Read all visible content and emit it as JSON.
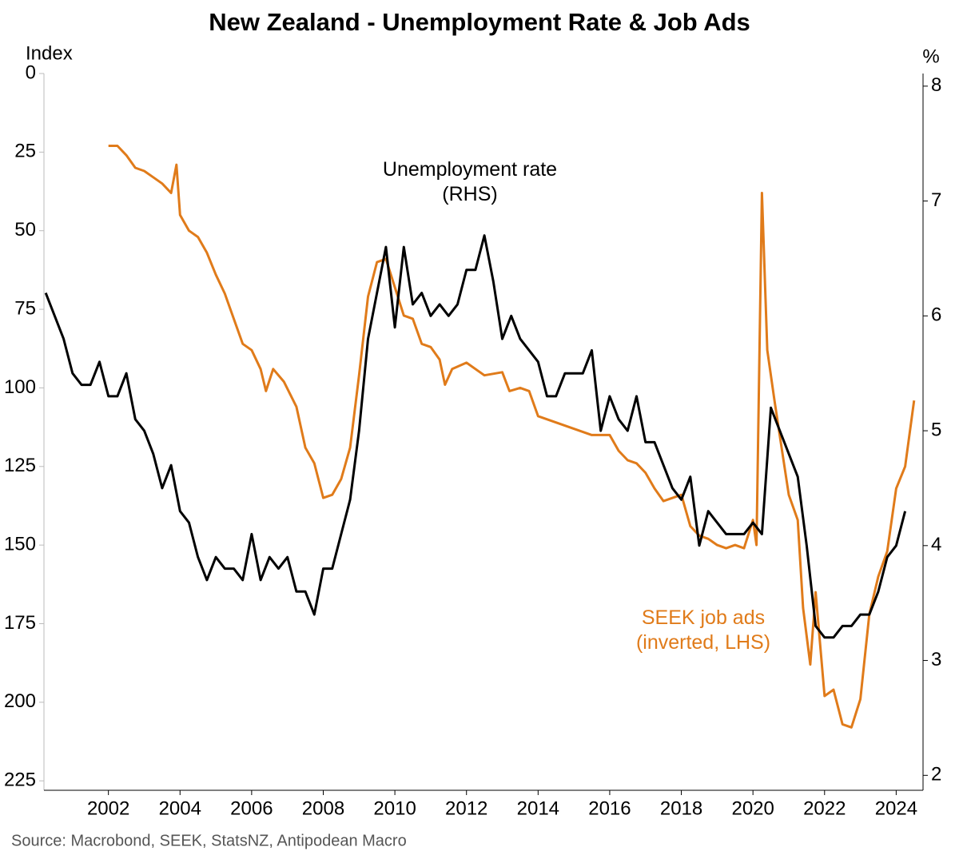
{
  "chart_data": {
    "type": "line",
    "title": "New Zealand - Unemployment Rate & Job Ads",
    "ylabel": "Index",
    "y2label": "%",
    "source": "Source: Macrobond, SEEK, StatsNZ, Antipodean Macro",
    "xlim": [
      2000.2,
      2024.75
    ],
    "xticks": [
      2002,
      2004,
      2006,
      2008,
      2010,
      2012,
      2014,
      2016,
      2018,
      2020,
      2022,
      2024
    ],
    "ylim": [
      0,
      228
    ],
    "y_inverted": true,
    "yticks": [
      0,
      25,
      50,
      75,
      100,
      125,
      150,
      175,
      200,
      225
    ],
    "y2lim": [
      1.87,
      8.11
    ],
    "y2ticks": [
      2,
      3,
      4,
      5,
      6,
      7,
      8
    ],
    "series": [
      {
        "name": "SEEK job ads",
        "color": "#e07b1a",
        "axis": "y",
        "x": [
          2002.0,
          2002.25,
          2002.5,
          2002.75,
          2003.0,
          2003.25,
          2003.5,
          2003.75,
          2003.9,
          2004.0,
          2004.25,
          2004.5,
          2004.75,
          2005.0,
          2005.25,
          2005.5,
          2005.75,
          2006.0,
          2006.25,
          2006.4,
          2006.6,
          2006.9,
          2007.25,
          2007.5,
          2007.75,
          2008.0,
          2008.25,
          2008.5,
          2008.75,
          2009.0,
          2009.25,
          2009.5,
          2009.75,
          2010.0,
          2010.25,
          2010.5,
          2010.75,
          2011.0,
          2011.25,
          2011.4,
          2011.6,
          2012.0,
          2012.5,
          2013.0,
          2013.2,
          2013.5,
          2013.75,
          2014.0,
          2014.5,
          2015.0,
          2015.5,
          2016.0,
          2016.25,
          2016.5,
          2016.75,
          2017.0,
          2017.25,
          2017.5,
          2018.0,
          2018.25,
          2018.5,
          2018.75,
          2019.0,
          2019.25,
          2019.5,
          2019.75,
          2020.0,
          2020.1,
          2020.25,
          2020.4,
          2020.6,
          2020.8,
          2021.0,
          2021.25,
          2021.4,
          2021.6,
          2021.75,
          2022.0,
          2022.25,
          2022.5,
          2022.75,
          2023.0,
          2023.25,
          2023.5,
          2023.75,
          2024.0,
          2024.25,
          2024.5
        ],
        "values": [
          23,
          23,
          26,
          30,
          31,
          33,
          35,
          38,
          29,
          45,
          50,
          52,
          57,
          64,
          70,
          78,
          86,
          88,
          94,
          101,
          94,
          98,
          106,
          119,
          124,
          135,
          134,
          129,
          119,
          96,
          71,
          60,
          59,
          68,
          77,
          78,
          86,
          87,
          91,
          99,
          94,
          92,
          96,
          95,
          101,
          100,
          101,
          109,
          111,
          113,
          115,
          115,
          120,
          123,
          124,
          127,
          132,
          136,
          134,
          144,
          147,
          148,
          150,
          151,
          150,
          151,
          142,
          150,
          38,
          88,
          104,
          119,
          134,
          142,
          170,
          188,
          165,
          198,
          196,
          207,
          208,
          199,
          172,
          160,
          152,
          132,
          125,
          104
        ]
      },
      {
        "name": "Unemployment rate",
        "color": "#000000",
        "axis": "y2",
        "x": [
          2000.25,
          2000.5,
          2000.75,
          2001.0,
          2001.25,
          2001.5,
          2001.75,
          2002.0,
          2002.25,
          2002.5,
          2002.75,
          2003.0,
          2003.25,
          2003.5,
          2003.75,
          2004.0,
          2004.25,
          2004.5,
          2004.75,
          2005.0,
          2005.25,
          2005.5,
          2005.75,
          2006.0,
          2006.25,
          2006.5,
          2006.75,
          2007.0,
          2007.25,
          2007.5,
          2007.75,
          2008.0,
          2008.25,
          2008.5,
          2008.75,
          2009.0,
          2009.25,
          2009.5,
          2009.75,
          2010.0,
          2010.25,
          2010.5,
          2010.75,
          2011.0,
          2011.25,
          2011.5,
          2011.75,
          2012.0,
          2012.25,
          2012.5,
          2012.75,
          2013.0,
          2013.25,
          2013.5,
          2013.75,
          2014.0,
          2014.25,
          2014.5,
          2014.75,
          2015.0,
          2015.25,
          2015.5,
          2015.75,
          2016.0,
          2016.25,
          2016.5,
          2016.75,
          2017.0,
          2017.25,
          2017.5,
          2017.75,
          2018.0,
          2018.25,
          2018.5,
          2018.75,
          2019.0,
          2019.25,
          2019.5,
          2019.75,
          2020.0,
          2020.25,
          2020.5,
          2020.75,
          2021.0,
          2021.25,
          2021.5,
          2021.75,
          2022.0,
          2022.25,
          2022.5,
          2022.75,
          2023.0,
          2023.25,
          2023.5,
          2023.75,
          2024.0,
          2024.25
        ],
        "values": [
          6.2,
          6.0,
          5.8,
          5.5,
          5.4,
          5.4,
          5.6,
          5.3,
          5.3,
          5.5,
          5.1,
          5.0,
          4.8,
          4.5,
          4.7,
          4.3,
          4.2,
          3.9,
          3.7,
          3.9,
          3.8,
          3.8,
          3.7,
          4.1,
          3.7,
          3.9,
          3.8,
          3.9,
          3.6,
          3.6,
          3.4,
          3.8,
          3.8,
          4.1,
          4.4,
          5.0,
          5.8,
          6.2,
          6.6,
          5.9,
          6.6,
          6.1,
          6.2,
          6.0,
          6.1,
          6.0,
          6.1,
          6.4,
          6.4,
          6.7,
          6.3,
          5.8,
          6.0,
          5.8,
          5.7,
          5.6,
          5.3,
          5.3,
          5.5,
          5.5,
          5.5,
          5.7,
          5.0,
          5.3,
          5.1,
          5.0,
          5.3,
          4.9,
          4.9,
          4.7,
          4.5,
          4.4,
          4.6,
          4.0,
          4.3,
          4.2,
          4.1,
          4.1,
          4.1,
          4.2,
          4.1,
          5.2,
          5.0,
          4.8,
          4.6,
          4.0,
          3.3,
          3.2,
          3.2,
          3.3,
          3.3,
          3.4,
          3.4,
          3.6,
          3.9,
          4.0,
          4.3
        ]
      }
    ],
    "annotations": [
      {
        "lines": [
          "Unemployment rate",
          "(RHS)"
        ],
        "color": "#000000"
      },
      {
        "lines": [
          "SEEK job ads",
          "(inverted, LHS)"
        ],
        "color": "#e07b1a"
      }
    ]
  }
}
